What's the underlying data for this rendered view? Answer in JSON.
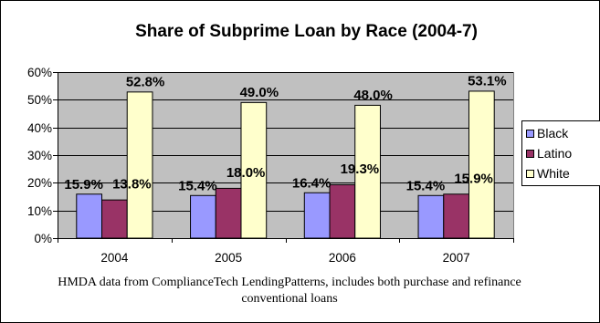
{
  "chart_data": {
    "type": "bar",
    "title": "Share of Subprime Loan by Race (2004-7)",
    "categories": [
      "2004",
      "2005",
      "2006",
      "2007"
    ],
    "series": [
      {
        "name": "Black",
        "color": "#9999FF",
        "values": [
          15.9,
          15.4,
          16.4,
          15.4
        ],
        "labels": [
          "15.9%",
          "15.4%",
          "16.4%",
          "15.4%"
        ]
      },
      {
        "name": "Latino",
        "color": "#993366",
        "values": [
          13.8,
          18.0,
          19.3,
          15.9
        ],
        "labels": [
          "13.8%",
          "18.0%",
          "19.3%",
          "15.9%"
        ]
      },
      {
        "name": "White",
        "color": "#FFFFCC",
        "values": [
          52.8,
          49.0,
          48.0,
          53.1
        ],
        "labels": [
          "52.8%",
          "49.0%",
          "48.0%",
          "53.1%"
        ]
      }
    ],
    "ylim": [
      0,
      60
    ],
    "y_ticks": [
      0,
      10,
      20,
      30,
      40,
      50,
      60
    ],
    "y_tick_labels": [
      "0%",
      "10%",
      "20%",
      "30%",
      "40%",
      "50%",
      "60%"
    ],
    "grid": true,
    "legend": "right",
    "plot_background": "#C0C0C0",
    "note": [
      "HMDA data from ComplianceTech LendingPatterns, includes both purchase and refinance",
      "conventional loans"
    ]
  }
}
